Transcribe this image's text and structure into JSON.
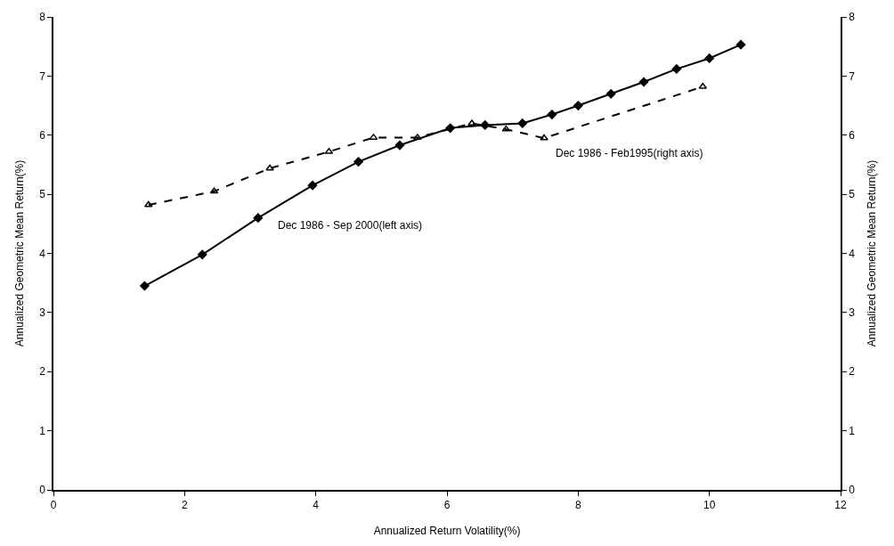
{
  "chart_data": {
    "type": "line",
    "xlabel": "Annualized Return Volatility(%)",
    "ylabel": "Annualized Geometric Mean Return(%)",
    "y2label": "Annualized Geometric Mean Return(%)",
    "xlim": [
      0,
      12
    ],
    "xticks": [
      0,
      2,
      4,
      6,
      8,
      10,
      12
    ],
    "ylim": [
      0,
      8
    ],
    "yticks": [
      0,
      1,
      2,
      3,
      4,
      5,
      6,
      7,
      8
    ],
    "y2lim": [
      0,
      8
    ],
    "y2ticks": [
      0,
      1,
      2,
      3,
      4,
      5,
      6,
      7,
      8
    ],
    "legend": false,
    "series": [
      {
        "name": "Dec 1986 - Sep 2000(left axis)",
        "color": "#000000",
        "line_style": "solid",
        "marker": "diamond",
        "x": [
          1.39,
          2.27,
          3.12,
          3.95,
          4.65,
          5.28,
          6.05,
          6.58,
          7.15,
          7.6,
          8.0,
          8.5,
          9.0,
          9.5,
          10.0,
          10.48
        ],
        "values": [
          3.45,
          3.98,
          4.6,
          5.15,
          5.55,
          5.83,
          6.12,
          6.17,
          6.2,
          6.35,
          6.5,
          6.7,
          6.9,
          7.12,
          7.3,
          7.53
        ]
      },
      {
        "name": "Dec 1986 - Feb1995(right axis)",
        "color": "#000000",
        "axis": "y2",
        "line_style": "dashed",
        "marker": "triangle",
        "x": [
          1.45,
          2.45,
          3.3,
          4.2,
          4.88,
          5.55,
          6.38,
          6.9,
          7.48,
          9.9
        ],
        "values": [
          4.82,
          5.05,
          5.44,
          5.72,
          5.96,
          5.96,
          6.2,
          6.1,
          5.95,
          6.82
        ]
      }
    ]
  }
}
